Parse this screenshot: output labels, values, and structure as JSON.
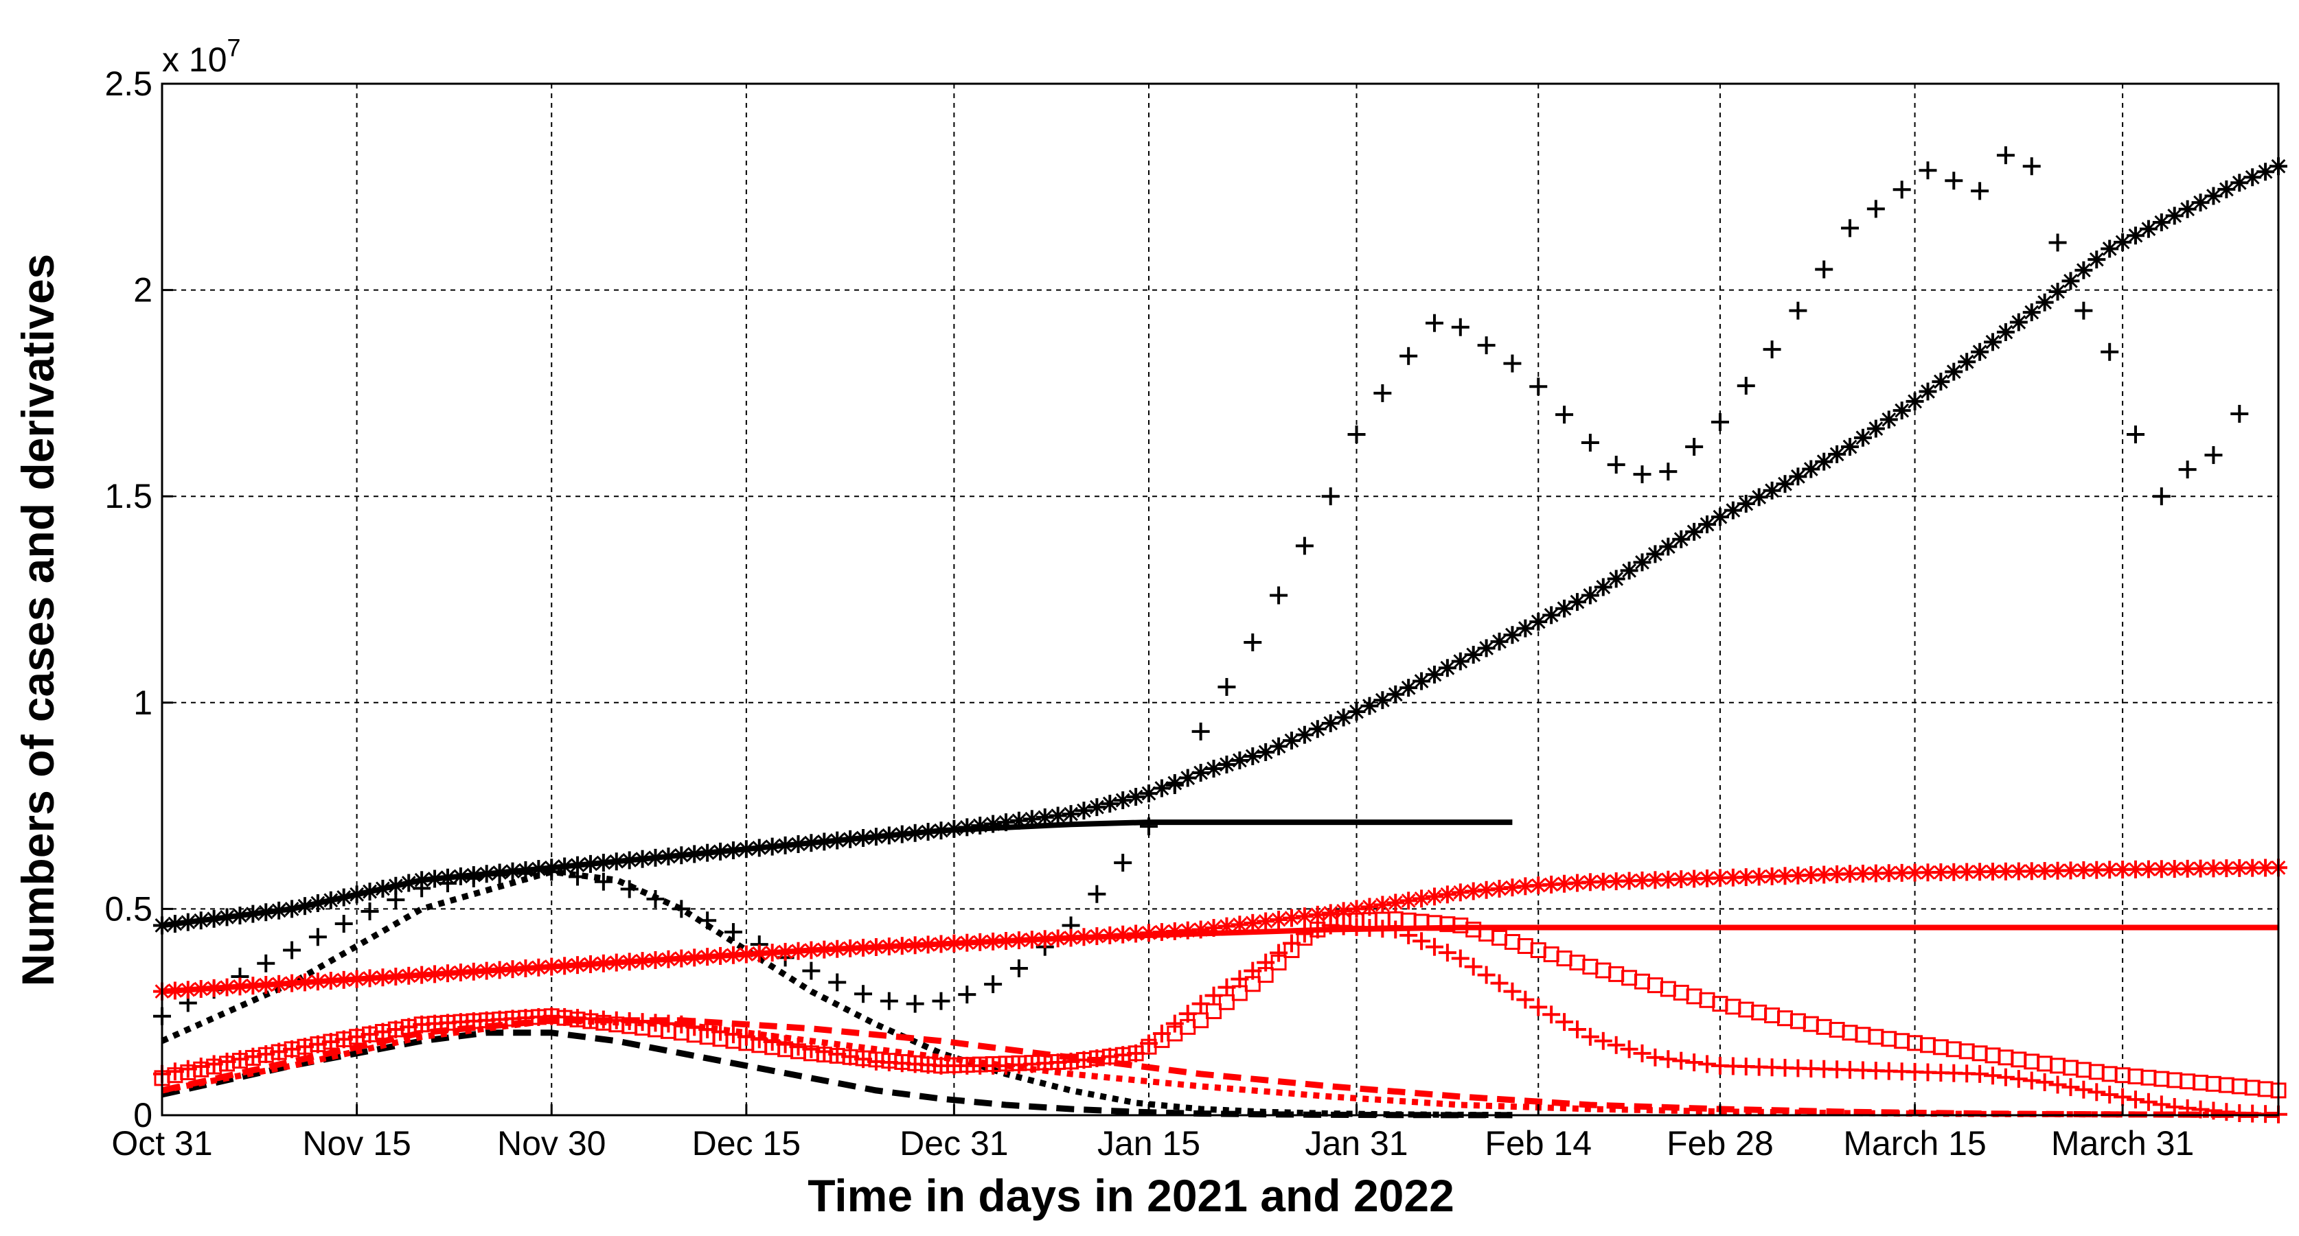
{
  "chart_data": {
    "type": "line",
    "xlabel": "Time in days in 2021 and 2022",
    "ylabel": "Numbers of cases and derivatives",
    "exponent_label": "x 10",
    "exponent_power": "7",
    "x_ticks": [
      {
        "day": 0,
        "label": "Oct 31"
      },
      {
        "day": 15,
        "label": "Nov 15"
      },
      {
        "day": 30,
        "label": "Nov 30"
      },
      {
        "day": 45,
        "label": "Dec 15"
      },
      {
        "day": 61,
        "label": "Dec 31"
      },
      {
        "day": 76,
        "label": "Jan 15"
      },
      {
        "day": 92,
        "label": "Jan 31"
      },
      {
        "day": 106,
        "label": "Feb 14"
      },
      {
        "day": 120,
        "label": "Feb 28"
      },
      {
        "day": 135,
        "label": "March 15"
      },
      {
        "day": 151,
        "label": "March 31"
      }
    ],
    "y_ticks": [
      {
        "value": 0,
        "label": "0"
      },
      {
        "value": 5000000,
        "label": "0.5"
      },
      {
        "value": 10000000,
        "label": "1"
      },
      {
        "value": 15000000,
        "label": "1.5"
      },
      {
        "value": 20000000,
        "label": "2"
      },
      {
        "value": 25000000,
        "label": "2.5"
      }
    ],
    "xlim": [
      0,
      163
    ],
    "ylim": [
      0,
      25000000
    ],
    "grid": true,
    "series": [
      {
        "color": "#000000",
        "style": "asterisk",
        "step": 1,
        "x": [
          0,
          10,
          20,
          30,
          40,
          50,
          60,
          70,
          76,
          80,
          85,
          90,
          95,
          100,
          105,
          110,
          115,
          120,
          125,
          130,
          135,
          140,
          145,
          150,
          155,
          160,
          163
        ],
        "y": [
          4600000,
          5000000,
          5700000,
          6000000,
          6300000,
          6600000,
          6900000,
          7300000,
          7800000,
          8300000,
          8800000,
          9500000,
          10200000,
          11000000,
          11800000,
          12600000,
          13600000,
          14500000,
          15300000,
          16200000,
          17300000,
          18500000,
          19700000,
          21000000,
          21800000,
          22600000,
          23000000
        ]
      },
      {
        "color": "#000000",
        "style": "plus",
        "step": 2,
        "x": [
          0,
          5,
          10,
          15,
          20,
          25,
          30,
          35,
          40,
          45,
          50,
          55,
          58,
          61,
          65,
          70,
          75,
          78,
          80,
          85,
          90,
          92,
          95,
          98,
          100,
          105,
          110,
          113,
          116,
          120,
          125,
          130,
          133,
          136,
          140,
          143,
          145,
          147,
          150,
          152,
          154,
          155,
          157,
          158,
          160
        ],
        "y": [
          2400000,
          3200000,
          4000000,
          4800000,
          5500000,
          5800000,
          5900000,
          5600000,
          5000000,
          4300000,
          3500000,
          2800000,
          2700000,
          2800000,
          3300000,
          4600000,
          6500000,
          8000000,
          9300000,
          12000000,
          15000000,
          16500000,
          18000000,
          19200000,
          19100000,
          18000000,
          16300000,
          15500000,
          15600000,
          16800000,
          19000000,
          21500000,
          22200000,
          22900000,
          22400000,
          23700000,
          22300000,
          20000000,
          18500000,
          16500000,
          15000000,
          16500000,
          14800000,
          16000000,
          17000000
        ]
      },
      {
        "color": "#000000",
        "style": "dotted",
        "step": 1,
        "x": [
          0,
          10,
          20,
          30,
          35,
          40,
          45,
          50,
          55,
          60,
          65,
          70,
          75,
          80,
          85,
          90,
          95,
          100,
          104
        ],
        "y": [
          1800000,
          3200000,
          5000000,
          5900000,
          5700000,
          5000000,
          4000000,
          3000000,
          2200000,
          1500000,
          1000000,
          600000,
          300000,
          150000,
          80000,
          40000,
          20000,
          10000,
          5000
        ]
      },
      {
        "color": "#000000",
        "style": "dashed",
        "step": 1,
        "x": [
          0,
          10,
          20,
          25,
          30,
          35,
          40,
          45,
          50,
          55,
          60,
          65,
          70,
          75,
          80,
          85,
          90,
          95,
          100,
          104
        ],
        "y": [
          500000,
          1200000,
          1800000,
          2000000,
          2000000,
          1800000,
          1500000,
          1200000,
          900000,
          600000,
          400000,
          250000,
          150000,
          80000,
          40000,
          20000,
          10000,
          5000,
          2000,
          1000
        ]
      },
      {
        "color": "#000000",
        "style": "solid",
        "step": 1,
        "x": [
          0,
          10,
          20,
          30,
          40,
          50,
          60,
          70,
          76,
          80,
          90,
          100,
          104
        ],
        "y": [
          4600000,
          5000000,
          5700000,
          6000000,
          6300000,
          6600000,
          6900000,
          7050000,
          7100000,
          7100000,
          7100000,
          7100000,
          7100000
        ]
      },
      {
        "color": "#ff0000",
        "style": "asterisk",
        "step": 1,
        "x": [
          0,
          10,
          20,
          30,
          40,
          50,
          60,
          70,
          80,
          85,
          90,
          95,
          100,
          105,
          110,
          115,
          120,
          125,
          130,
          135,
          140,
          145,
          150,
          155,
          160,
          163
        ],
        "y": [
          3000000,
          3200000,
          3400000,
          3600000,
          3800000,
          4000000,
          4150000,
          4300000,
          4500000,
          4700000,
          4900000,
          5150000,
          5400000,
          5550000,
          5650000,
          5700000,
          5750000,
          5800000,
          5850000,
          5880000,
          5900000,
          5920000,
          5950000,
          5970000,
          5990000,
          6000000
        ]
      },
      {
        "color": "#ff0000",
        "style": "square",
        "step": 1,
        "x": [
          0,
          10,
          20,
          30,
          40,
          50,
          60,
          70,
          75,
          80,
          85,
          88,
          90,
          95,
          100,
          105,
          110,
          120,
          130,
          140,
          150,
          160,
          163
        ],
        "y": [
          900000,
          1600000,
          2200000,
          2400000,
          2000000,
          1500000,
          1200000,
          1300000,
          1500000,
          2300000,
          3400000,
          4300000,
          4700000,
          4750000,
          4600000,
          4100000,
          3600000,
          2700000,
          2000000,
          1500000,
          1000000,
          700000,
          600000
        ]
      },
      {
        "color": "#ff0000",
        "style": "plus",
        "step": 1,
        "x": [
          0,
          10,
          20,
          30,
          40,
          50,
          55,
          60,
          65,
          70,
          75,
          80,
          85,
          88,
          90,
          95,
          100,
          105,
          110,
          115,
          120,
          125,
          130,
          135,
          140,
          145,
          150,
          155,
          160,
          163
        ],
        "y": [
          1000000,
          1600000,
          2200000,
          2400000,
          2200000,
          1600000,
          1300000,
          1200000,
          1200000,
          1300000,
          1500000,
          2700000,
          3700000,
          4400000,
          4600000,
          4500000,
          3800000,
          2800000,
          1900000,
          1400000,
          1200000,
          1150000,
          1100000,
          1050000,
          1000000,
          800000,
          500000,
          200000,
          50000,
          20000
        ]
      },
      {
        "color": "#ff0000",
        "style": "dotted",
        "step": 1,
        "x": [
          0,
          10,
          20,
          30,
          40,
          50,
          60,
          70,
          80,
          90,
          100,
          110,
          120,
          130,
          140,
          150,
          160,
          163
        ],
        "y": [
          600000,
          1200000,
          1900000,
          2300000,
          2200000,
          1800000,
          1400000,
          1000000,
          700000,
          450000,
          250000,
          150000,
          90000,
          50000,
          30000,
          20000,
          10000,
          8000
        ]
      },
      {
        "color": "#ff0000",
        "style": "dashed",
        "step": 1,
        "x": [
          0,
          10,
          20,
          30,
          40,
          50,
          60,
          70,
          80,
          90,
          100,
          110,
          120,
          130,
          140,
          150,
          160,
          163
        ],
        "y": [
          600000,
          1300000,
          2000000,
          2300000,
          2300000,
          2100000,
          1800000,
          1400000,
          1000000,
          700000,
          450000,
          250000,
          150000,
          80000,
          40000,
          20000,
          10000,
          8000
        ]
      },
      {
        "color": "#ff0000",
        "style": "solid",
        "step": 1,
        "x": [
          0,
          10,
          20,
          30,
          40,
          50,
          60,
          70,
          80,
          90,
          100,
          110,
          120,
          130,
          140,
          150,
          160,
          163
        ],
        "y": [
          3000000,
          3200000,
          3400000,
          3600000,
          3800000,
          4000000,
          4150000,
          4300000,
          4400000,
          4500000,
          4550000,
          4550000,
          4550000,
          4550000,
          4550000,
          4550000,
          4550000,
          4550000
        ]
      }
    ]
  }
}
